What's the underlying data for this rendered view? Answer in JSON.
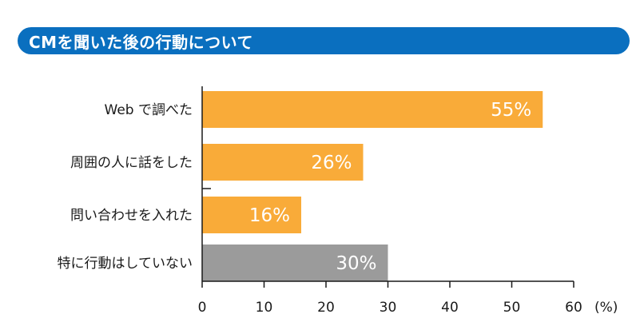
{
  "chart_data": {
    "type": "bar",
    "orientation": "horizontal",
    "title": "CMを聞いた後の行動について",
    "categories": [
      "Web で調べた",
      "周囲の人に話をした",
      "問い合わせを入れた",
      "特に行動はしていない"
    ],
    "values": [
      55,
      26,
      16,
      30
    ],
    "value_labels": [
      "55%",
      "26%",
      "16%",
      "30%"
    ],
    "bar_colors": [
      "#f9ab39",
      "#f9ab39",
      "#f9ab39",
      "#9b9b9b"
    ],
    "xlim": [
      0,
      60
    ],
    "xticks": [
      0,
      10,
      20,
      30,
      40,
      50,
      60
    ],
    "xunit": "(%)",
    "grid": false
  },
  "colors": {
    "title_bg": "#0a6fbf",
    "highlight": "#f9ab39",
    "neutral": "#9b9b9b",
    "axis": "#1a1a1a"
  }
}
